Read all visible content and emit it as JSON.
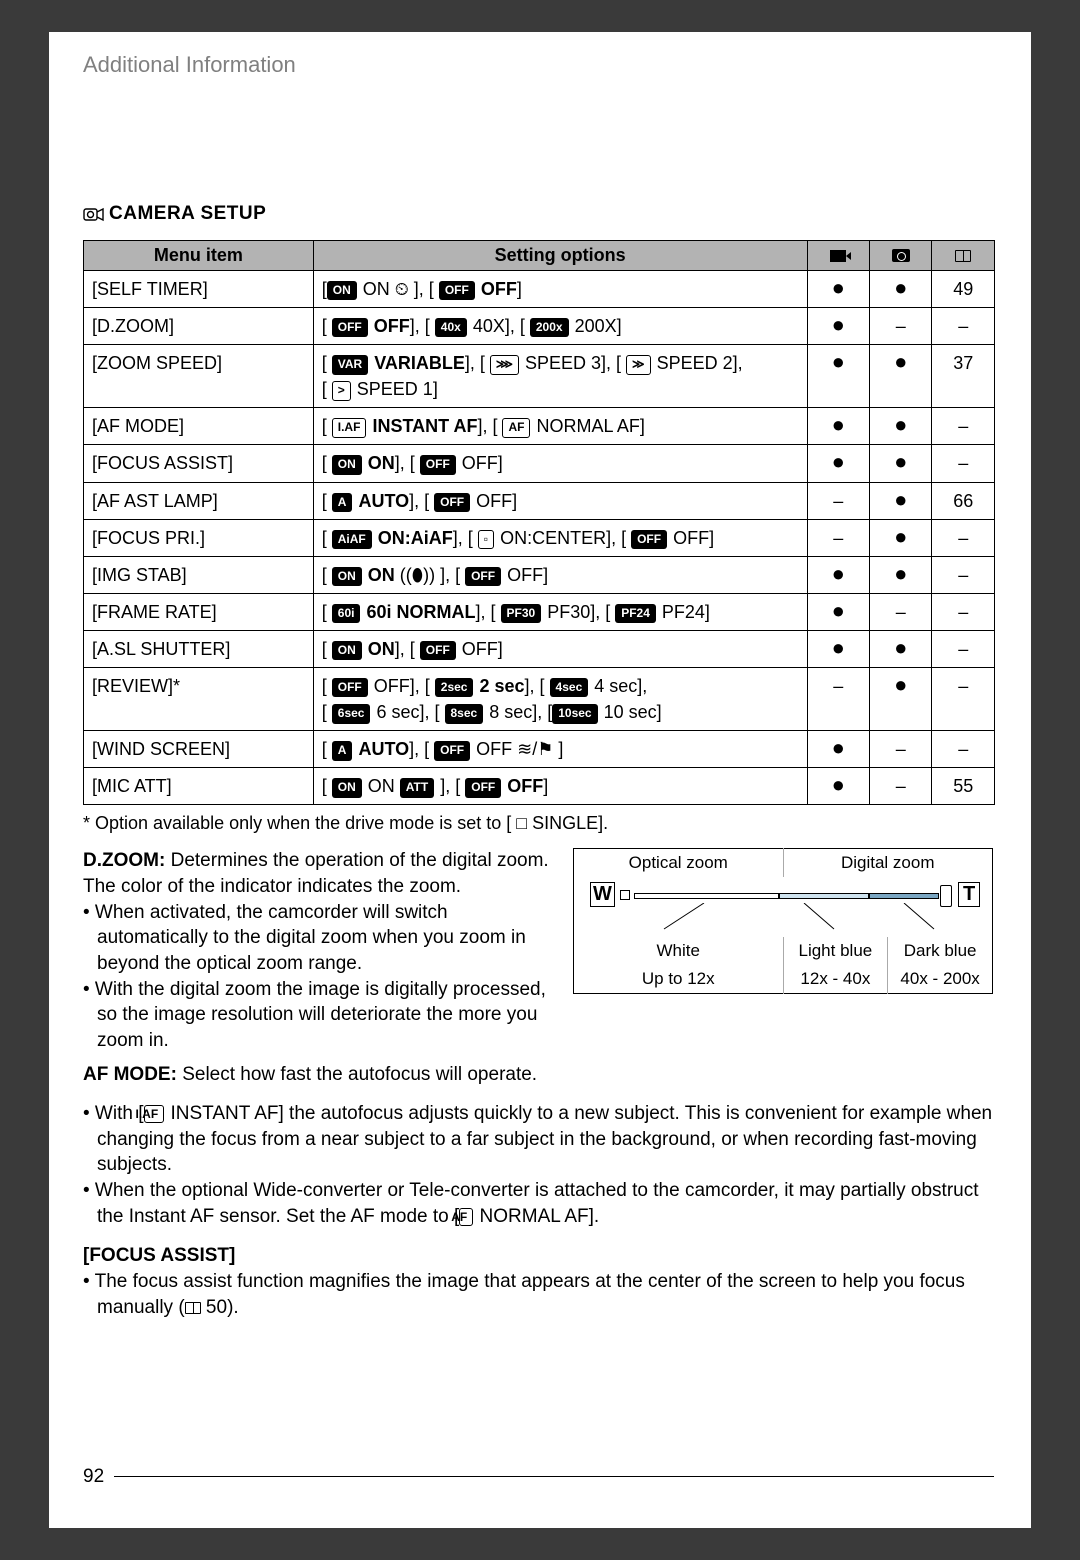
{
  "header": "Additional Information",
  "section_title": "CAMERA SETUP",
  "columns": {
    "menu": "Menu item",
    "settings": "Setting options"
  },
  "rows": [
    {
      "item": "[SELF TIMER]",
      "opt": "[<pill>ON</pill> ON ⏲ ], [ <pill>OFF</pill> <b>OFF</b>]",
      "v": "●",
      "c": "●",
      "p": "49"
    },
    {
      "item": "[D.ZOOM]",
      "opt": "[ <pill>OFF</pill> <b>OFF</b>], [ <pill>40x</pill> 40X], [ <pill>200x</pill> 200X]",
      "v": "●",
      "c": "–",
      "p": "–"
    },
    {
      "item": "[ZOOM SPEED]",
      "opt": "[ <pill>VAR</pill> <b>VARIABLE</b>], [ <pillw>⋙</pillw> SPEED 3], [ <pillw>≫</pillw> SPEED 2],<br>[ <pillw>&gt;</pillw> SPEED 1]",
      "v": "●",
      "c": "●",
      "p": "37"
    },
    {
      "item": "[AF MODE]",
      "opt": "[ <pillw>I.AF</pillw> <b>INSTANT AF</b>], [ <pillw>AF</pillw> NORMAL AF]",
      "v": "●",
      "c": "●",
      "p": "–"
    },
    {
      "item": "[FOCUS ASSIST]",
      "opt": "[ <pill>ON</pill> <b>ON</b>], [ <pill>OFF</pill> OFF]",
      "v": "●",
      "c": "●",
      "p": "–"
    },
    {
      "item": "[AF AST LAMP]",
      "opt": "[ <pill>A</pill> <b>AUTO</b>], [ <pill>OFF</pill> OFF]",
      "v": "–",
      "c": "●",
      "p": "66"
    },
    {
      "item": "[FOCUS PRI.]",
      "opt": "[ <pill>AiAF</pill> <b>ON:AiAF</b>], [ <pillw>▫</pillw> ON:CENTER], [ <pill>OFF</pill> OFF]",
      "v": "–",
      "c": "●",
      "p": "–"
    },
    {
      "item": "[IMG STAB]",
      "opt": "[ <pill>ON</pill> <b>ON</b> ((⬮)) ], [ <pill>OFF</pill> OFF]",
      "v": "●",
      "c": "●",
      "p": "–"
    },
    {
      "item": "[FRAME RATE]",
      "opt": "[ <pill>60i</pill> <b>60i NORMAL</b>], [ <pill>PF30</pill> PF30], [ <pill>PF24</pill> PF24]",
      "v": "●",
      "c": "–",
      "p": "–"
    },
    {
      "item": "[A.SL SHUTTER]",
      "opt": "[ <pill>ON</pill> <b>ON</b>], [ <pill>OFF</pill> OFF]",
      "v": "●",
      "c": "●",
      "p": "–"
    },
    {
      "item": "[REVIEW]*",
      "opt": "[ <pill>OFF</pill> OFF], [ <pill>2sec</pill> <b>2 sec</b>], [ <pill>4sec</pill> 4 sec],<br>[ <pill>6sec</pill> 6 sec], [ <pill>8sec</pill> 8 sec], [<pill>10sec</pill> 10 sec]",
      "v": "–",
      "c": "●",
      "p": "–"
    },
    {
      "item": "[WIND SCREEN]",
      "opt": "[ <pill>A</pill> <b>AUTO</b>], [ <pill>OFF</pill> OFF ≋/⚑ ]",
      "v": "●",
      "c": "–",
      "p": "–"
    },
    {
      "item": "[MIC ATT]",
      "opt": "[ <pill>ON</pill> ON <pill>ATT</pill> ], [ <pill>OFF</pill> <b>OFF</b>]",
      "v": "●",
      "c": "–",
      "p": "55"
    }
  ],
  "footnote": "* Option available only when the drive mode is set to [ □ SINGLE].",
  "zoom_diagram": {
    "optical": "Optical zoom",
    "digital": "Digital zoom",
    "white": "White",
    "light_blue": "Light blue",
    "dark_blue": "Dark blue",
    "r1": "Up to 12x",
    "r2": "12x - 40x",
    "r3": "40x - 200x"
  },
  "para1": "<b>D.ZOOM:</b> Determines the operation of the digital zoom. The color of the indicator indicates the zoom.",
  "para1_b1": "• When activated, the camcorder will switch automatically to the digital zoom when you zoom in beyond the optical zoom range.",
  "para1_b2": "• With the digital zoom the image is digitally processed, so the image resolution will deteriorate the more you zoom in.",
  "para2": "<b>AF MODE:</b> Select how fast the autofocus will operate.",
  "para2_b1": "• With [<pillw>I.AF</pillw> INSTANT AF] the autofocus adjusts quickly to a new subject. This is convenient for example when changing the focus from a near subject to a far subject in the background, or when recording fast-moving subjects.",
  "para2_b2": "• When the optional Wide-converter or Tele-converter is attached to the camcorder, it may partially obstruct the Instant AF sensor. Set the AF mode to [<pillw>AF</pillw> NORMAL AF].",
  "para3_h": "[FOCUS ASSIST]",
  "para3_b1": "• The focus assist function magnifies the image that appears at the center of the screen to help you focus manually (<book> 50).",
  "page_number": "92"
}
